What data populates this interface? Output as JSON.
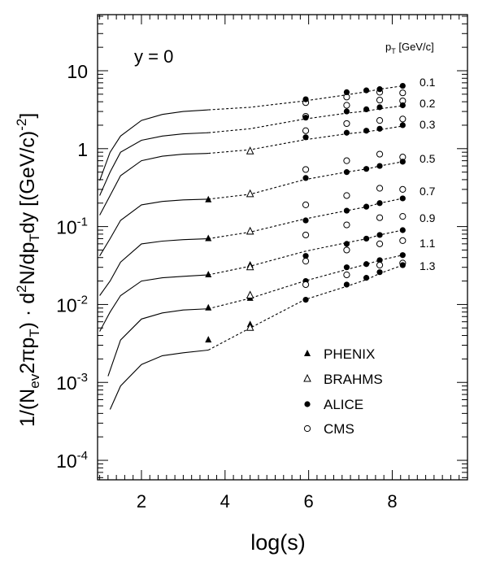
{
  "chart_data": {
    "type": "scatter",
    "xlabel": "log(s)",
    "ylabel": "1/(Nev2πpT) · d²N/dpTdy [(GeV/c)⁻²]",
    "annotation": "y = 0",
    "pt_header": "pT [GeV/c]",
    "xlim": [
      0.95,
      9.8
    ],
    "ylim_log10": [
      -4.25,
      1.72
    ],
    "log_y": true,
    "x_ticks": [
      {
        "value": 2,
        "label": "2"
      },
      {
        "value": 4,
        "label": "4"
      },
      {
        "value": 6,
        "label": "6"
      },
      {
        "value": 8,
        "label": "8"
      }
    ],
    "y_ticks": [
      {
        "exp": 1,
        "base": "10",
        "sup": ""
      },
      {
        "exp": 0,
        "base": "1",
        "sup": ""
      },
      {
        "exp": -1,
        "base": "10",
        "sup": "-1"
      },
      {
        "exp": -2,
        "base": "10",
        "sup": "-2"
      },
      {
        "exp": -3,
        "base": "10",
        "sup": "-3"
      },
      {
        "exp": -4,
        "base": "10",
        "sup": "-4"
      }
    ],
    "legend": [
      {
        "name": "PHENIX",
        "marker": "filled-triangle"
      },
      {
        "name": "BRAHMS",
        "marker": "open-triangle"
      },
      {
        "name": "ALICE",
        "marker": "filled-circle"
      },
      {
        "name": "CMS",
        "marker": "open-circle"
      }
    ],
    "series": [
      {
        "pt": "0.1",
        "solid": [
          [
            1.0,
            0.39
          ],
          [
            1.25,
            0.9
          ],
          [
            1.5,
            1.45
          ],
          [
            2.0,
            2.3
          ],
          [
            2.5,
            2.75
          ],
          [
            3.0,
            3.0
          ],
          [
            3.6,
            3.15
          ]
        ],
        "dashed": [
          [
            3.6,
            3.15
          ],
          [
            4.6,
            3.4
          ],
          [
            5.9,
            4.1
          ],
          [
            6.9,
            4.9
          ],
          [
            7.4,
            5.4
          ],
          [
            7.7,
            5.8
          ],
          [
            8.25,
            6.4
          ]
        ],
        "alice": [
          [
            5.93,
            4.3
          ],
          [
            6.91,
            5.3
          ],
          [
            7.38,
            5.6
          ],
          [
            7.7,
            5.8
          ],
          [
            8.25,
            6.4
          ]
        ],
        "cms": [
          [
            5.93,
            3.9
          ],
          [
            6.91,
            4.6
          ],
          [
            7.7,
            5.3
          ],
          [
            8.25,
            5.2
          ]
        ],
        "phenix": [],
        "brahms": []
      },
      {
        "pt": "0.2",
        "solid": [
          [
            1.0,
            0.25
          ],
          [
            1.25,
            0.5
          ],
          [
            1.5,
            0.9
          ],
          [
            2.0,
            1.28
          ],
          [
            2.5,
            1.45
          ],
          [
            3.0,
            1.55
          ],
          [
            3.6,
            1.6
          ]
        ],
        "dashed": [
          [
            3.6,
            1.6
          ],
          [
            4.6,
            1.8
          ],
          [
            5.9,
            2.4
          ],
          [
            6.9,
            2.85
          ],
          [
            7.4,
            3.05
          ],
          [
            7.7,
            3.25
          ],
          [
            8.25,
            3.55
          ]
        ],
        "alice": [
          [
            5.93,
            2.5
          ],
          [
            6.91,
            3.0
          ],
          [
            7.38,
            3.2
          ],
          [
            7.7,
            3.4
          ],
          [
            8.25,
            3.6
          ]
        ],
        "cms": [
          [
            5.93,
            2.6
          ],
          [
            6.91,
            3.6
          ],
          [
            7.7,
            4.2
          ],
          [
            8.25,
            4.1
          ]
        ],
        "phenix": [],
        "brahms": []
      },
      {
        "pt": "0.3",
        "solid": [
          [
            1.0,
            0.14
          ],
          [
            1.25,
            0.25
          ],
          [
            1.5,
            0.45
          ],
          [
            2.0,
            0.7
          ],
          [
            2.5,
            0.8
          ],
          [
            3.0,
            0.85
          ],
          [
            3.6,
            0.87
          ]
        ],
        "dashed": [
          [
            3.6,
            0.87
          ],
          [
            4.6,
            0.97
          ],
          [
            5.9,
            1.3
          ],
          [
            6.9,
            1.55
          ],
          [
            7.4,
            1.65
          ],
          [
            7.7,
            1.75
          ],
          [
            8.25,
            1.95
          ]
        ],
        "alice": [
          [
            5.93,
            1.4
          ],
          [
            6.91,
            1.6
          ],
          [
            7.38,
            1.7
          ],
          [
            7.7,
            1.8
          ],
          [
            8.25,
            2.0
          ]
        ],
        "cms": [
          [
            5.93,
            1.7
          ],
          [
            6.91,
            2.1
          ],
          [
            7.7,
            2.3
          ],
          [
            8.25,
            2.4
          ]
        ],
        "phenix": [],
        "brahms": [
          [
            4.6,
            0.92
          ]
        ]
      },
      {
        "pt": "0.5",
        "solid": [
          [
            1.0,
            0.042
          ],
          [
            1.25,
            0.07
          ],
          [
            1.5,
            0.12
          ],
          [
            2.0,
            0.19
          ],
          [
            2.5,
            0.21
          ],
          [
            3.0,
            0.22
          ],
          [
            3.6,
            0.225
          ]
        ],
        "dashed": [
          [
            3.6,
            0.225
          ],
          [
            4.6,
            0.26
          ],
          [
            5.9,
            0.4
          ],
          [
            6.9,
            0.5
          ],
          [
            7.4,
            0.55
          ],
          [
            7.7,
            0.6
          ],
          [
            8.25,
            0.68
          ]
        ],
        "alice": [
          [
            5.93,
            0.42
          ],
          [
            6.91,
            0.5
          ],
          [
            7.38,
            0.55
          ],
          [
            7.7,
            0.6
          ],
          [
            8.25,
            0.68
          ]
        ],
        "cms": [
          [
            5.93,
            0.54
          ],
          [
            6.91,
            0.7
          ],
          [
            7.7,
            0.85
          ],
          [
            8.25,
            0.78
          ]
        ],
        "phenix": [
          [
            3.6,
            0.22
          ],
          [
            4.6,
            0.26
          ]
        ],
        "brahms": [
          [
            4.6,
            0.26
          ]
        ]
      },
      {
        "pt": "0.7",
        "solid": [
          [
            1.0,
            0.013
          ],
          [
            1.25,
            0.02
          ],
          [
            1.5,
            0.035
          ],
          [
            2.0,
            0.06
          ],
          [
            2.5,
            0.065
          ],
          [
            3.0,
            0.068
          ],
          [
            3.6,
            0.07
          ]
        ],
        "dashed": [
          [
            3.6,
            0.07
          ],
          [
            4.6,
            0.085
          ],
          [
            5.9,
            0.125
          ],
          [
            6.9,
            0.16
          ],
          [
            7.4,
            0.18
          ],
          [
            7.7,
            0.2
          ],
          [
            8.25,
            0.23
          ]
        ],
        "alice": [
          [
            5.93,
            0.12
          ],
          [
            6.91,
            0.16
          ],
          [
            7.38,
            0.18
          ],
          [
            7.7,
            0.2
          ],
          [
            8.25,
            0.23
          ]
        ],
        "cms": [
          [
            5.93,
            0.19
          ],
          [
            6.91,
            0.25
          ],
          [
            7.7,
            0.31
          ],
          [
            8.25,
            0.3
          ]
        ],
        "phenix": [
          [
            3.6,
            0.07
          ],
          [
            4.6,
            0.085
          ]
        ],
        "brahms": [
          [
            4.6,
            0.086
          ]
        ]
      },
      {
        "pt": "0.9",
        "solid": [
          [
            1.0,
            0.0045
          ],
          [
            1.25,
            0.008
          ],
          [
            1.5,
            0.013
          ],
          [
            2.0,
            0.02
          ],
          [
            2.5,
            0.022
          ],
          [
            3.0,
            0.023
          ],
          [
            3.6,
            0.024
          ]
        ],
        "dashed": [
          [
            3.6,
            0.024
          ],
          [
            4.6,
            0.031
          ],
          [
            5.9,
            0.048
          ],
          [
            6.9,
            0.062
          ],
          [
            7.4,
            0.07
          ],
          [
            7.7,
            0.078
          ],
          [
            8.25,
            0.09
          ]
        ],
        "alice": [
          [
            5.93,
            0.042
          ],
          [
            6.91,
            0.06
          ],
          [
            7.38,
            0.07
          ],
          [
            7.7,
            0.078
          ],
          [
            8.25,
            0.09
          ]
        ],
        "cms": [
          [
            5.93,
            0.078
          ],
          [
            6.91,
            0.105
          ],
          [
            7.7,
            0.13
          ],
          [
            8.25,
            0.135
          ]
        ],
        "phenix": [
          [
            3.6,
            0.024
          ],
          [
            4.6,
            0.032
          ]
        ],
        "brahms": [
          [
            4.6,
            0.03
          ]
        ]
      },
      {
        "pt": "1.1",
        "solid": [
          [
            1.2,
            0.0012
          ],
          [
            1.5,
            0.0035
          ],
          [
            2.0,
            0.0065
          ],
          [
            2.5,
            0.0078
          ],
          [
            3.0,
            0.0085
          ],
          [
            3.6,
            0.0088
          ]
        ],
        "dashed": [
          [
            3.6,
            0.0088
          ],
          [
            4.6,
            0.012
          ],
          [
            5.9,
            0.02
          ],
          [
            6.9,
            0.028
          ],
          [
            7.4,
            0.033
          ],
          [
            7.7,
            0.037
          ],
          [
            8.25,
            0.043
          ]
        ],
        "alice": [
          [
            5.93,
            0.02
          ],
          [
            6.91,
            0.03
          ],
          [
            7.38,
            0.033
          ],
          [
            7.7,
            0.037
          ],
          [
            8.25,
            0.043
          ]
        ],
        "cms": [
          [
            5.93,
            0.036
          ],
          [
            6.91,
            0.05
          ],
          [
            7.7,
            0.06
          ],
          [
            8.25,
            0.066
          ]
        ],
        "phenix": [
          [
            3.6,
            0.009
          ],
          [
            4.6,
            0.012
          ]
        ],
        "brahms": [
          [
            4.6,
            0.013
          ]
        ]
      },
      {
        "pt": "1.3",
        "solid": [
          [
            1.25,
            0.00045
          ],
          [
            1.5,
            0.0009
          ],
          [
            2.0,
            0.0017
          ],
          [
            2.5,
            0.0022
          ],
          [
            3.0,
            0.0024
          ],
          [
            3.6,
            0.0026
          ]
        ],
        "dashed": [
          [
            3.6,
            0.0026
          ],
          [
            4.6,
            0.005
          ],
          [
            5.9,
            0.0115
          ],
          [
            6.9,
            0.017
          ],
          [
            7.4,
            0.021
          ],
          [
            7.7,
            0.025
          ],
          [
            8.25,
            0.032
          ]
        ],
        "alice": [
          [
            5.93,
            0.0115
          ],
          [
            6.91,
            0.018
          ],
          [
            7.38,
            0.022
          ],
          [
            7.7,
            0.026
          ],
          [
            8.25,
            0.032
          ]
        ],
        "cms": [
          [
            5.93,
            0.018
          ],
          [
            6.91,
            0.024
          ],
          [
            7.7,
            0.032
          ],
          [
            8.25,
            0.034
          ]
        ],
        "phenix": [
          [
            3.6,
            0.0035
          ],
          [
            4.6,
            0.0055
          ]
        ],
        "brahms": [
          [
            4.6,
            0.005
          ]
        ]
      }
    ]
  }
}
